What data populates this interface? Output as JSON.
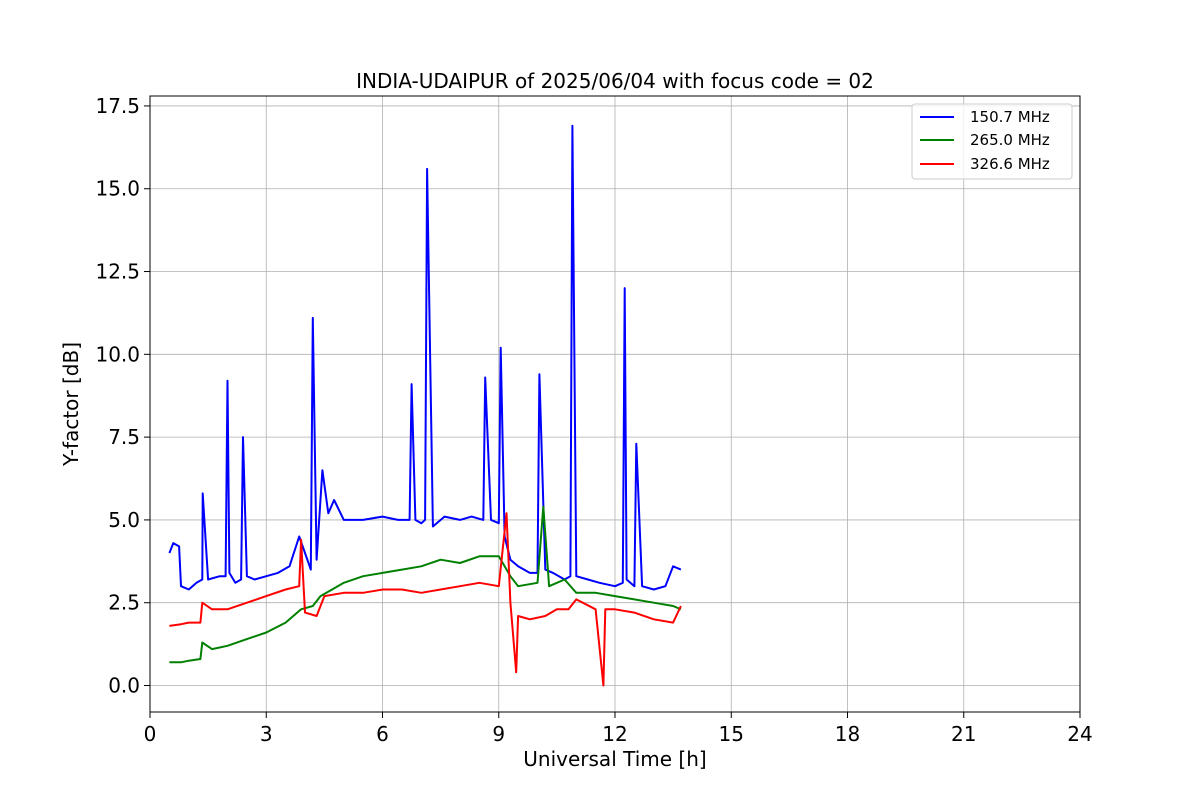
{
  "chart_data": {
    "type": "line",
    "title": "INDIA-UDAIPUR of 2025/06/04 with focus code = 02",
    "xlabel": "Universal Time [h]",
    "ylabel": "Y-factor [dB]",
    "xlim": [
      0,
      24
    ],
    "ylim": [
      -0.8,
      17.8
    ],
    "xticks": [
      0,
      3,
      6,
      9,
      12,
      15,
      18,
      21,
      24
    ],
    "xtick_labels": [
      "0",
      "3",
      "6",
      "9",
      "12",
      "15",
      "18",
      "21",
      "24"
    ],
    "yticks": [
      0.0,
      2.5,
      5.0,
      7.5,
      10.0,
      12.5,
      15.0,
      17.5
    ],
    "ytick_labels": [
      "0.0",
      "2.5",
      "5.0",
      "7.5",
      "10.0",
      "12.5",
      "15.0",
      "17.5"
    ],
    "grid": true,
    "legend_position": "top-right",
    "series": [
      {
        "name": "150.7 MHz",
        "color": "#0000ff",
        "x": [
          0.5,
          0.6,
          0.75,
          0.8,
          1.0,
          1.2,
          1.35,
          1.36,
          1.5,
          1.8,
          1.95,
          2.0,
          2.05,
          2.2,
          2.35,
          2.4,
          2.5,
          2.7,
          3.0,
          3.3,
          3.6,
          3.85,
          4.0,
          4.15,
          4.2,
          4.3,
          4.45,
          4.6,
          4.75,
          5.0,
          5.2,
          5.5,
          6.0,
          6.4,
          6.7,
          6.75,
          6.85,
          7.0,
          7.1,
          7.15,
          7.3,
          7.6,
          8.0,
          8.3,
          8.6,
          8.65,
          8.8,
          9.0,
          9.05,
          9.15,
          9.3,
          9.5,
          9.8,
          10.0,
          10.05,
          10.2,
          10.4,
          10.7,
          10.85,
          10.9,
          11.0,
          11.3,
          11.6,
          12.0,
          12.2,
          12.25,
          12.3,
          12.5,
          12.55,
          12.7,
          13.0,
          13.3,
          13.5,
          13.7
        ],
        "y": [
          4.0,
          4.3,
          4.2,
          3.0,
          2.9,
          3.1,
          3.2,
          5.8,
          3.2,
          3.3,
          3.3,
          9.2,
          3.4,
          3.1,
          3.2,
          7.5,
          3.3,
          3.2,
          3.3,
          3.4,
          3.6,
          4.5,
          4.0,
          3.5,
          11.1,
          3.8,
          6.5,
          5.2,
          5.6,
          5.0,
          5.0,
          5.0,
          5.1,
          5.0,
          5.0,
          9.1,
          5.0,
          4.9,
          5.0,
          15.6,
          4.8,
          5.1,
          5.0,
          5.1,
          5.0,
          9.3,
          5.0,
          4.9,
          10.2,
          4.5,
          3.8,
          3.6,
          3.4,
          3.4,
          9.4,
          3.5,
          3.4,
          3.2,
          3.3,
          16.9,
          3.3,
          3.2,
          3.1,
          3.0,
          3.1,
          12.0,
          3.2,
          3.0,
          7.3,
          3.0,
          2.9,
          3.0,
          3.6,
          3.5
        ]
      },
      {
        "name": "265.0 MHz",
        "color": "#008000",
        "x": [
          0.5,
          0.8,
          1.0,
          1.3,
          1.35,
          1.6,
          2.0,
          2.5,
          3.0,
          3.5,
          3.9,
          4.2,
          4.4,
          4.7,
          5.0,
          5.5,
          6.0,
          6.5,
          7.0,
          7.5,
          8.0,
          8.5,
          9.0,
          9.3,
          9.5,
          10.0,
          10.15,
          10.3,
          10.7,
          11.0,
          11.5,
          12.0,
          12.5,
          13.0,
          13.5,
          13.7
        ],
        "y": [
          0.7,
          0.7,
          0.75,
          0.8,
          1.3,
          1.1,
          1.2,
          1.4,
          1.6,
          1.9,
          2.3,
          2.4,
          2.7,
          2.9,
          3.1,
          3.3,
          3.4,
          3.5,
          3.6,
          3.8,
          3.7,
          3.9,
          3.9,
          3.3,
          3.0,
          3.1,
          5.4,
          3.0,
          3.2,
          2.8,
          2.8,
          2.7,
          2.6,
          2.5,
          2.4,
          2.3
        ]
      },
      {
        "name": "326.6 MHz",
        "color": "#ff0000",
        "x": [
          0.5,
          0.8,
          1.0,
          1.3,
          1.35,
          1.6,
          2.0,
          2.5,
          3.0,
          3.5,
          3.85,
          3.9,
          4.0,
          4.3,
          4.5,
          5.0,
          5.5,
          6.0,
          6.5,
          7.0,
          7.5,
          8.0,
          8.5,
          9.0,
          9.2,
          9.3,
          9.45,
          9.5,
          9.8,
          10.2,
          10.5,
          10.8,
          11.0,
          11.5,
          11.7,
          11.75,
          12.0,
          12.5,
          13.0,
          13.5,
          13.7
        ],
        "y": [
          1.8,
          1.85,
          1.9,
          1.9,
          2.5,
          2.3,
          2.3,
          2.5,
          2.7,
          2.9,
          3.0,
          4.4,
          2.2,
          2.1,
          2.7,
          2.8,
          2.8,
          2.9,
          2.9,
          2.8,
          2.9,
          3.0,
          3.1,
          3.0,
          5.2,
          2.5,
          0.4,
          2.1,
          2.0,
          2.1,
          2.3,
          2.3,
          2.6,
          2.3,
          0.0,
          2.3,
          2.3,
          2.2,
          2.0,
          1.9,
          2.4
        ]
      }
    ]
  }
}
